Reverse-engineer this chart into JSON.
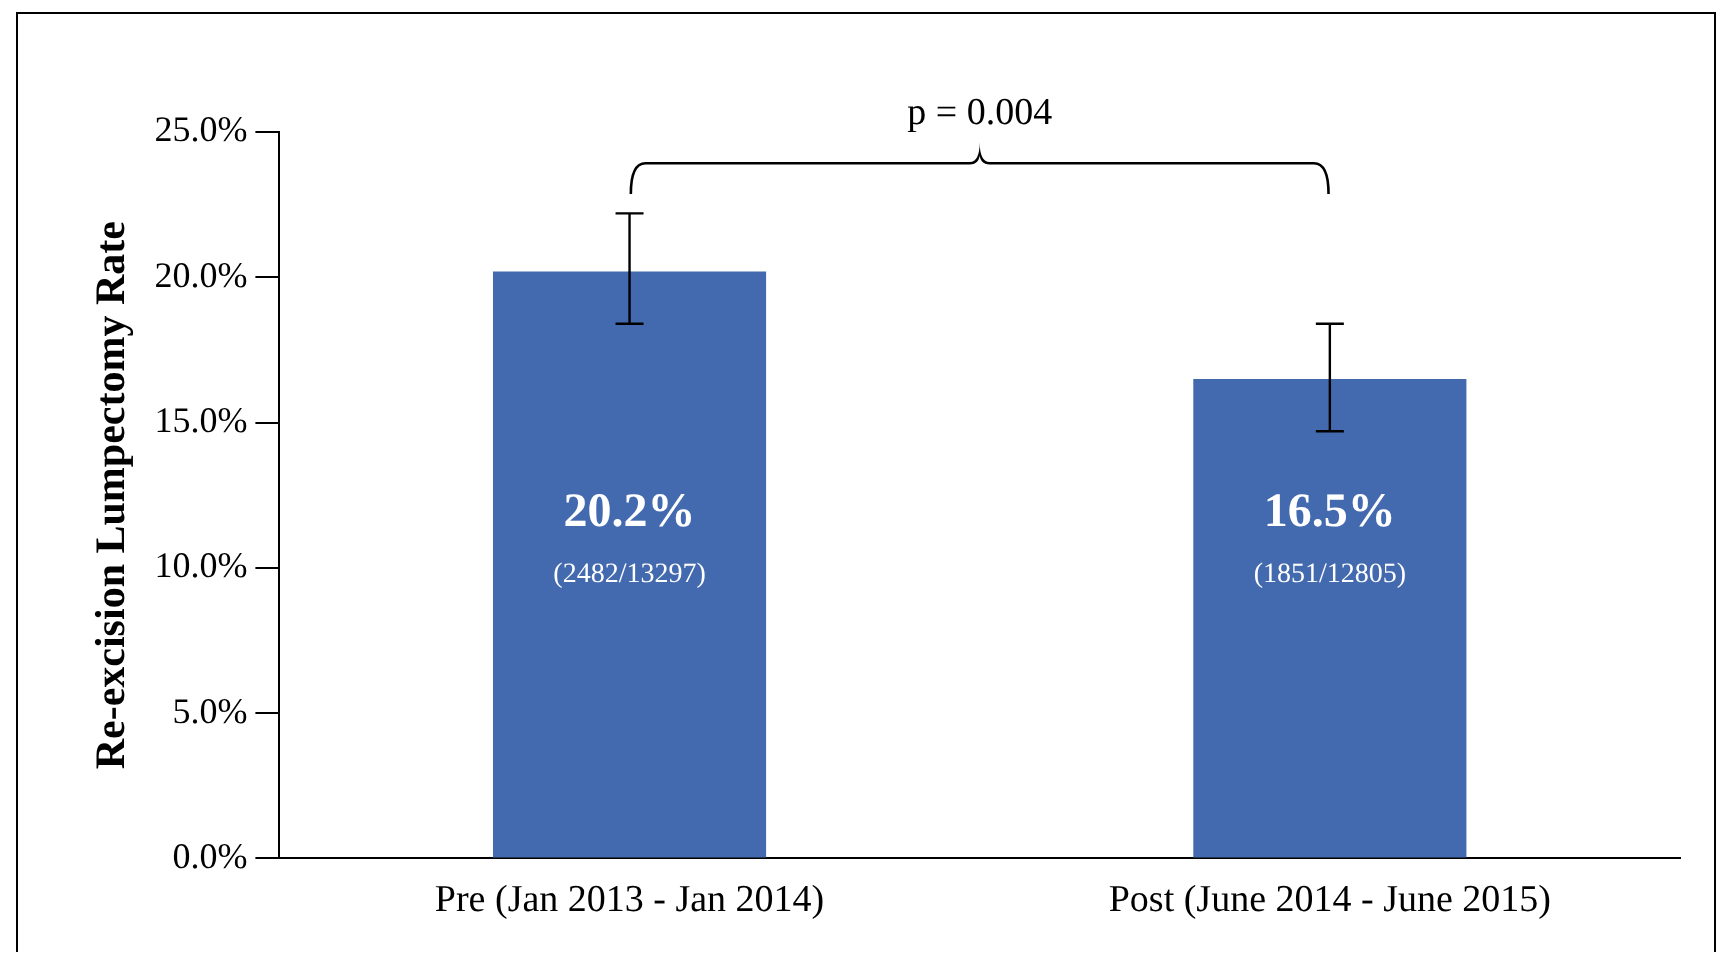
{
  "chart_data": {
    "type": "bar",
    "ylabel": "Re-excision Lumpectomy Rate",
    "categories": [
      "Pre (Jan 2013 - Jan 2014)",
      "Post (June 2014 - June 2015)"
    ],
    "values": [
      20.2,
      16.5
    ],
    "color": "#436aae",
    "errors": [
      [
        18.4,
        22.2
      ],
      [
        14.7,
        18.4
      ]
    ],
    "value_labels": [
      "20.2%",
      "16.5%"
    ],
    "ylim": [
      0,
      25
    ],
    "yticks": [
      {
        "value": 0,
        "label": "0.0%"
      },
      {
        "value": 5,
        "label": "5.0%"
      },
      {
        "value": 10,
        "label": "10.0%"
      },
      {
        "value": 15,
        "label": "15.0%"
      },
      {
        "value": 20,
        "label": "20.0%"
      },
      {
        "value": 25,
        "label": "25.0%"
      }
    ],
    "grid": false,
    "legend": false,
    "annotations": [
      "(2482/13297)",
      "(1851/12805)",
      "p = 0.004"
    ]
  }
}
